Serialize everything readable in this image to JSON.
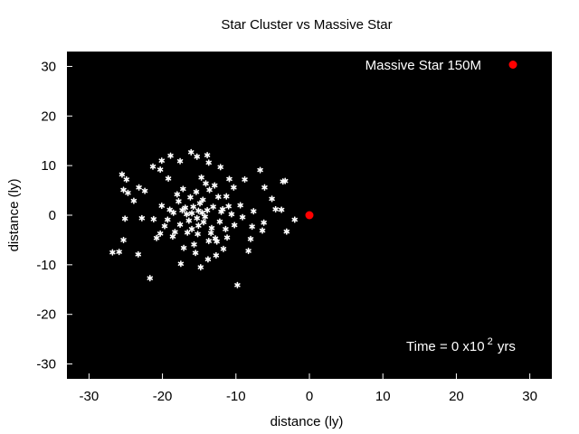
{
  "chart_data": {
    "type": "scatter",
    "title": "Star Cluster vs Massive Star",
    "xlabel": "distance (ly)",
    "ylabel": "distance (ly)",
    "xlim": [
      -33,
      33
    ],
    "ylim": [
      -33,
      33
    ],
    "xticks": [
      -30,
      -20,
      -10,
      0,
      10,
      20,
      30
    ],
    "yticks": [
      -30,
      -20,
      -10,
      0,
      10,
      20,
      30
    ],
    "grid": false,
    "background": "#000000",
    "legend": {
      "position": "top-right"
    },
    "annotation": {
      "prefix": "Time = 0 x10",
      "superscript": "2",
      "suffix": " yrs"
    },
    "series": [
      {
        "color": "#ffffff",
        "marker": "asterisk",
        "points": [
          [
            -25.5,
            8.2
          ],
          [
            -24.9,
            7.2
          ],
          [
            -25.3,
            5.1
          ],
          [
            -24.7,
            4.5
          ],
          [
            -23.2,
            5.6
          ],
          [
            -22.4,
            4.9
          ],
          [
            -23.9,
            2.9
          ],
          [
            -21.3,
            9.8
          ],
          [
            -20.1,
            11.0
          ],
          [
            -20.3,
            9.2
          ],
          [
            -18.9,
            12.0
          ],
          [
            -17.6,
            10.9
          ],
          [
            -16.1,
            12.7
          ],
          [
            -15.3,
            11.8
          ],
          [
            -13.9,
            12.1
          ],
          [
            -13.7,
            10.6
          ],
          [
            -12.1,
            9.7
          ],
          [
            -10.9,
            7.3
          ],
          [
            -8.8,
            7.2
          ],
          [
            -6.7,
            9.1
          ],
          [
            -6.1,
            5.6
          ],
          [
            -5.1,
            3.3
          ],
          [
            -3.3,
            6.9
          ],
          [
            -3.6,
            6.8
          ],
          [
            -19.2,
            7.4
          ],
          [
            -17.2,
            5.3
          ],
          [
            -14.7,
            7.6
          ],
          [
            -13.6,
            5.1
          ],
          [
            -12.4,
            3.7
          ],
          [
            -11.8,
            1.2
          ],
          [
            -10.6,
            0.2
          ],
          [
            -9.4,
            2.0
          ],
          [
            -7.6,
            0.8
          ],
          [
            -6.2,
            -1.5
          ],
          [
            -4.6,
            1.2
          ],
          [
            -3.8,
            1.1
          ],
          [
            -2.0,
            -0.9
          ],
          [
            -3.1,
            -3.3
          ],
          [
            -7.8,
            -2.3
          ],
          [
            -8.3,
            -7.2
          ],
          [
            -9.8,
            -14.1
          ],
          [
            -11.2,
            -4.5
          ],
          [
            -12.8,
            -4.7
          ],
          [
            -13.7,
            -5.2
          ],
          [
            -15.2,
            -3.8
          ],
          [
            -15.5,
            -7.6
          ],
          [
            -14.8,
            -10.5
          ],
          [
            -17.5,
            -9.8
          ],
          [
            -18.6,
            -4.3
          ],
          [
            -20.3,
            -3.7
          ],
          [
            -21.7,
            -12.7
          ],
          [
            -23.3,
            -7.9
          ],
          [
            -25.9,
            -7.4
          ],
          [
            -26.8,
            -7.5
          ],
          [
            -25.3,
            -5.0
          ],
          [
            -25.1,
            -0.7
          ],
          [
            -22.8,
            -0.6
          ],
          [
            -21.2,
            -0.8
          ],
          [
            -20.1,
            1.9
          ],
          [
            -19.0,
            1.1
          ],
          [
            -17.8,
            2.8
          ],
          [
            -16.9,
            1.5
          ],
          [
            -16.0,
            0.4
          ],
          [
            -15.1,
            0.9
          ],
          [
            -14.2,
            -0.3
          ],
          [
            -13.1,
            1.7
          ],
          [
            -12.2,
            -1.3
          ],
          [
            -11.4,
            -2.8
          ],
          [
            -14.9,
            2.4
          ],
          [
            -16.4,
            -1.1
          ],
          [
            -17.6,
            -1.9
          ],
          [
            -18.3,
            -3.4
          ],
          [
            -19.7,
            -2.2
          ],
          [
            -20.8,
            -4.6
          ],
          [
            -16.2,
            3.6
          ],
          [
            -15.4,
            4.7
          ],
          [
            -14.5,
            3.1
          ],
          [
            -13.3,
            -2.6
          ],
          [
            -12.6,
            -5.3
          ],
          [
            -11.7,
            -6.8
          ],
          [
            -15.7,
            -5.9
          ],
          [
            -17.1,
            -6.6
          ],
          [
            -18.0,
            4.2
          ],
          [
            -14.1,
            6.4
          ],
          [
            -12.9,
            6.0
          ],
          [
            -11.3,
            3.8
          ],
          [
            -10.3,
            5.6
          ],
          [
            -9.1,
            -0.4
          ],
          [
            -8.0,
            -4.8
          ],
          [
            -6.4,
            -3.1
          ],
          [
            -15.3,
            -0.6
          ],
          [
            -14.6,
            0.5
          ],
          [
            -15.8,
            1.7
          ],
          [
            -14.4,
            -1.4
          ],
          [
            -16.7,
            0.2
          ],
          [
            -13.9,
            1.0
          ],
          [
            -15.1,
            -2.1
          ],
          [
            -16.0,
            -2.8
          ],
          [
            -13.4,
            -3.6
          ],
          [
            -17.3,
            1.0
          ],
          [
            -18.5,
            0.5
          ],
          [
            -19.3,
            -0.9
          ],
          [
            -12.0,
            0.7
          ],
          [
            -11.0,
            1.8
          ],
          [
            -10.2,
            -2.0
          ],
          [
            -12.7,
            -8.1
          ],
          [
            -13.8,
            -8.9
          ],
          [
            -16.6,
            -3.5
          ]
        ]
      },
      {
        "name": "Massive Star 150M",
        "color": "#ff0000",
        "marker": "circle",
        "points": [
          [
            0.0,
            0.0
          ]
        ]
      }
    ]
  }
}
